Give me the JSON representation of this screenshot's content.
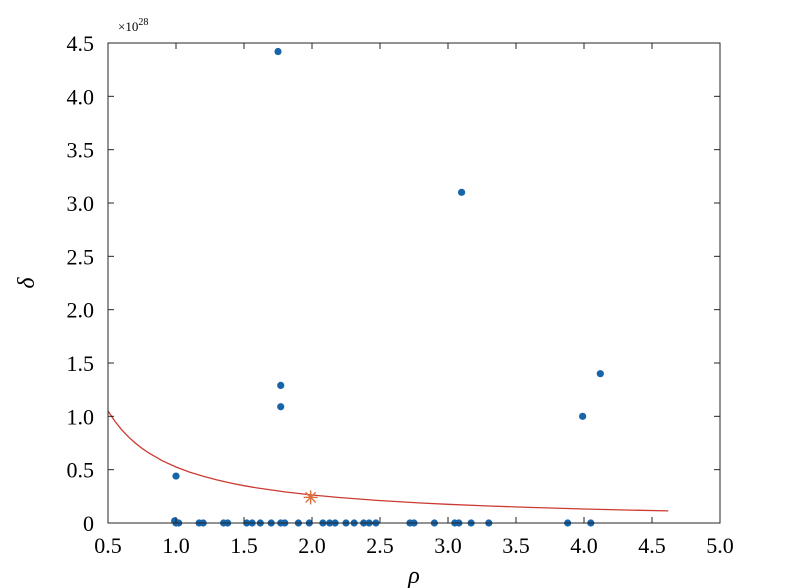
{
  "chart_data": {
    "type": "scatter",
    "xlabel": "ρ",
    "ylabel": "δ",
    "y_multiplier": "×10",
    "y_multiplier_exp": "28",
    "xlim": [
      0.5,
      5.0
    ],
    "ylim": [
      0,
      4.5
    ],
    "xticks": [
      "0.5",
      "1.0",
      "1.5",
      "2.0",
      "2.5",
      "3.0",
      "3.5",
      "4.0",
      "4.5",
      "5.0"
    ],
    "xtick_values": [
      0.5,
      1.0,
      1.5,
      2.0,
      2.5,
      3.0,
      3.5,
      4.0,
      4.5,
      5.0
    ],
    "yticks": [
      "0",
      "0.5",
      "1.0",
      "1.5",
      "2.0",
      "2.5",
      "3.0",
      "3.5",
      "4.0",
      "4.5"
    ],
    "ytick_values": [
      0,
      0.5,
      1.0,
      1.5,
      2.0,
      2.5,
      3.0,
      3.5,
      4.0,
      4.5
    ],
    "grid": false,
    "colors": {
      "points": "#1764ab",
      "curve": "#cc3a32",
      "star": "#d9703e"
    },
    "points": [
      {
        "x": 1.75,
        "y": 4.42
      },
      {
        "x": 3.1,
        "y": 3.1
      },
      {
        "x": 4.12,
        "y": 1.4
      },
      {
        "x": 1.77,
        "y": 1.29
      },
      {
        "x": 3.99,
        "y": 1.0
      },
      {
        "x": 1.77,
        "y": 1.09
      },
      {
        "x": 1.0,
        "y": 0.44
      },
      {
        "x": 0.99,
        "y": 0.02
      },
      {
        "x": 1.0,
        "y": 0.0
      },
      {
        "x": 1.02,
        "y": 0.0
      },
      {
        "x": 1.17,
        "y": 0.0
      },
      {
        "x": 1.2,
        "y": 0.0
      },
      {
        "x": 1.35,
        "y": 0.0
      },
      {
        "x": 1.38,
        "y": 0.0
      },
      {
        "x": 1.52,
        "y": 0.0
      },
      {
        "x": 1.56,
        "y": 0.0
      },
      {
        "x": 1.62,
        "y": 0.0
      },
      {
        "x": 1.7,
        "y": 0.0
      },
      {
        "x": 1.77,
        "y": 0.0
      },
      {
        "x": 1.8,
        "y": 0.0
      },
      {
        "x": 1.9,
        "y": 0.0
      },
      {
        "x": 1.98,
        "y": 0.0
      },
      {
        "x": 2.08,
        "y": 0.0
      },
      {
        "x": 2.13,
        "y": 0.0
      },
      {
        "x": 2.17,
        "y": 0.0
      },
      {
        "x": 2.25,
        "y": 0.0
      },
      {
        "x": 2.31,
        "y": 0.0
      },
      {
        "x": 2.38,
        "y": 0.0
      },
      {
        "x": 2.42,
        "y": 0.0
      },
      {
        "x": 2.47,
        "y": 0.0
      },
      {
        "x": 2.72,
        "y": 0.0
      },
      {
        "x": 2.75,
        "y": 0.0
      },
      {
        "x": 2.9,
        "y": 0.0
      },
      {
        "x": 3.05,
        "y": 0.0
      },
      {
        "x": 3.08,
        "y": 0.0
      },
      {
        "x": 3.17,
        "y": 0.0
      },
      {
        "x": 3.3,
        "y": 0.0
      },
      {
        "x": 3.88,
        "y": 0.0
      },
      {
        "x": 4.05,
        "y": 0.0
      }
    ],
    "curve": {
      "x": [
        0.5,
        0.55,
        0.6,
        0.65,
        0.7,
        0.75,
        0.8,
        0.9,
        1.0,
        1.1,
        1.2,
        1.3,
        1.4,
        1.5,
        1.6,
        1.8,
        2.0,
        2.2,
        2.5,
        2.8,
        3.0,
        3.3,
        3.6,
        4.0,
        4.3,
        4.62
      ],
      "y": [
        1.05,
        0.955,
        0.875,
        0.808,
        0.75,
        0.7,
        0.656,
        0.583,
        0.525,
        0.477,
        0.4375,
        0.404,
        0.375,
        0.35,
        0.328,
        0.292,
        0.2625,
        0.2386,
        0.21,
        0.1875,
        0.175,
        0.159,
        0.146,
        0.131,
        0.122,
        0.1136
      ]
    },
    "star": {
      "x": 1.99,
      "y": 0.24
    }
  }
}
